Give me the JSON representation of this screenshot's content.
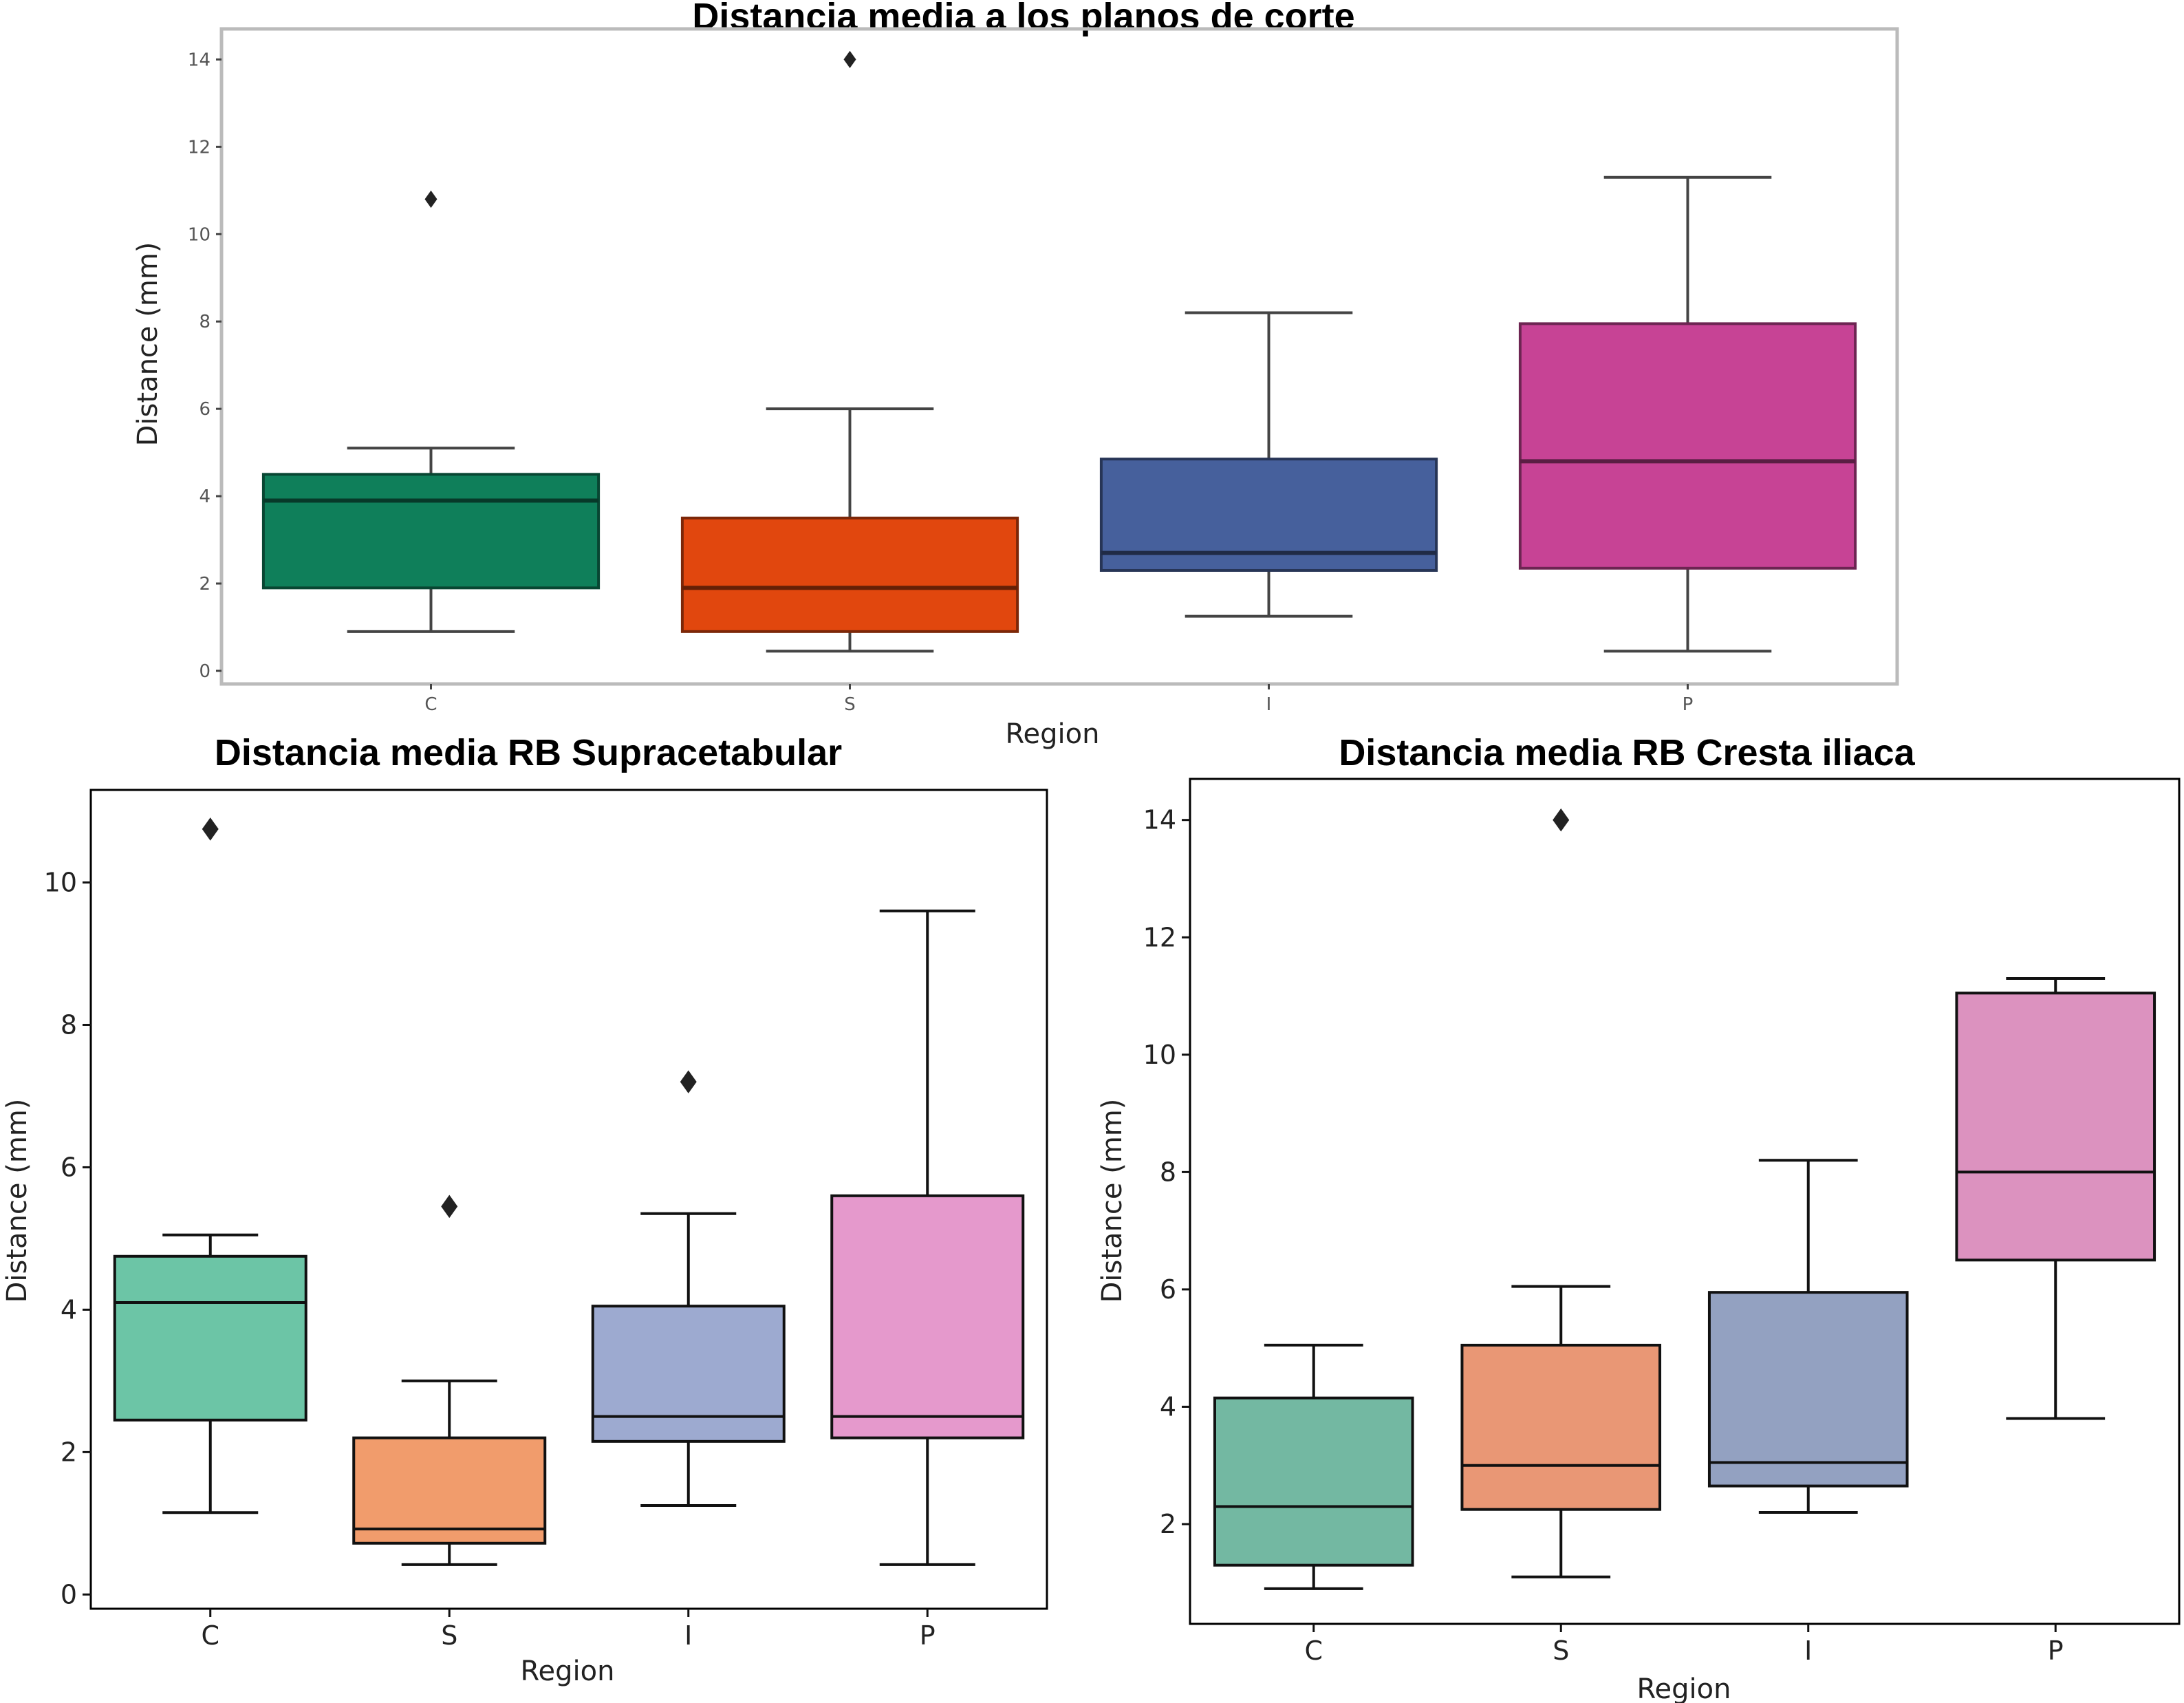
{
  "chart_data": [
    {
      "type": "box",
      "title": "Distancia media a los planos de corte",
      "xlabel": "Region",
      "ylabel": "Distance (mm)",
      "categories": [
        "C",
        "S",
        "I",
        "P"
      ],
      "ylim": [
        -0.3,
        14.7
      ],
      "yticks": [
        0,
        2,
        4,
        6,
        8,
        10,
        12,
        14
      ],
      "colors": [
        "#0f7f5a",
        "#e1470e",
        "#46609c",
        "#c74395"
      ],
      "boxes": [
        {
          "label": "C",
          "whislo": 0.9,
          "q1": 1.9,
          "med": 3.9,
          "q3": 4.5,
          "whishi": 5.1,
          "fliers": [
            10.8
          ]
        },
        {
          "label": "S",
          "whislo": 0.45,
          "q1": 0.9,
          "med": 1.9,
          "q3": 3.5,
          "whishi": 6.0,
          "fliers": [
            14.0
          ]
        },
        {
          "label": "I",
          "whislo": 1.25,
          "q1": 2.3,
          "med": 2.7,
          "q3": 4.85,
          "whishi": 8.2,
          "fliers": []
        },
        {
          "label": "P",
          "whislo": 0.45,
          "q1": 2.35,
          "med": 4.8,
          "q3": 7.95,
          "whishi": 11.3,
          "fliers": []
        }
      ]
    },
    {
      "type": "box",
      "title": "Distancia media RB Supracetabular",
      "xlabel": "Region",
      "ylabel": "Distance (mm)",
      "categories": [
        "C",
        "S",
        "I",
        "P"
      ],
      "ylim": [
        -0.2,
        11.3
      ],
      "yticks": [
        0,
        2,
        4,
        6,
        8,
        10
      ],
      "colors": [
        "#6cc5a6",
        "#f19c6c",
        "#9daad0",
        "#e599cc"
      ],
      "boxes": [
        {
          "label": "C",
          "whislo": 1.15,
          "q1": 2.45,
          "med": 4.1,
          "q3": 4.75,
          "whishi": 5.05,
          "fliers": [
            10.75
          ]
        },
        {
          "label": "S",
          "whislo": 0.42,
          "q1": 0.72,
          "med": 0.92,
          "q3": 2.2,
          "whishi": 3.0,
          "fliers": [
            5.45
          ]
        },
        {
          "label": "I",
          "whislo": 1.25,
          "q1": 2.15,
          "med": 2.5,
          "q3": 4.05,
          "whishi": 5.35,
          "fliers": [
            7.2
          ]
        },
        {
          "label": "P",
          "whislo": 0.42,
          "q1": 2.2,
          "med": 2.5,
          "q3": 5.6,
          "whishi": 9.6,
          "fliers": []
        }
      ]
    },
    {
      "type": "box",
      "title": "Distancia media RB Cresta iliaca",
      "xlabel": "Region",
      "ylabel": "Distance (mm)",
      "categories": [
        "C",
        "S",
        "I",
        "P"
      ],
      "ylim": [
        0.3,
        14.7
      ],
      "yticks": [
        2,
        4,
        6,
        8,
        10,
        12,
        14
      ],
      "colors": [
        "#73b8a2",
        "#e99775",
        "#93a1c1",
        "#dc92bf"
      ],
      "boxes": [
        {
          "label": "C",
          "whislo": 0.9,
          "q1": 1.3,
          "med": 2.3,
          "q3": 4.15,
          "whishi": 5.05,
          "fliers": []
        },
        {
          "label": "S",
          "whislo": 1.1,
          "q1": 2.25,
          "med": 3.0,
          "q3": 5.05,
          "whishi": 6.05,
          "fliers": [
            14.0
          ]
        },
        {
          "label": "I",
          "whislo": 2.2,
          "q1": 2.65,
          "med": 3.05,
          "q3": 5.95,
          "whishi": 8.2,
          "fliers": []
        },
        {
          "label": "P",
          "whislo": 3.8,
          "q1": 6.5,
          "med": 8.0,
          "q3": 11.05,
          "whishi": 11.3,
          "fliers": []
        }
      ]
    }
  ]
}
